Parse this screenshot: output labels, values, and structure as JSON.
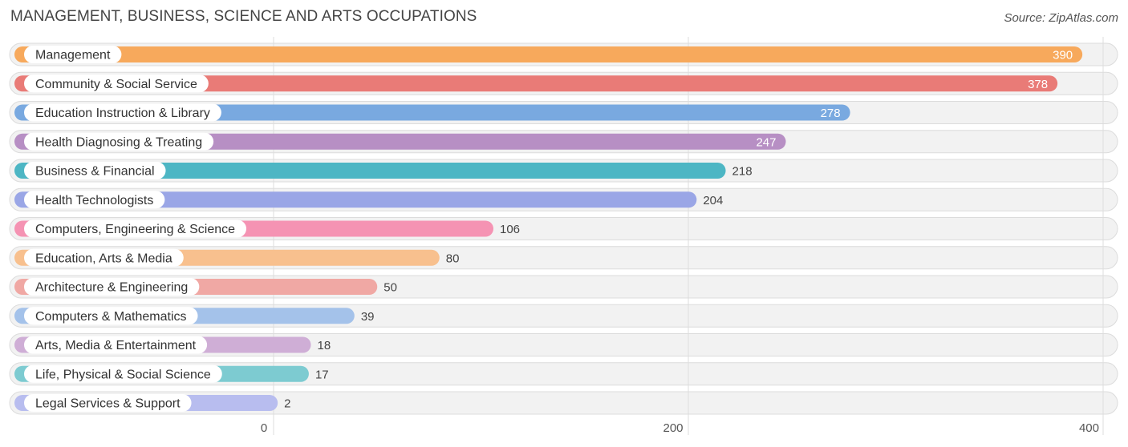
{
  "header": {
    "title": "MANAGEMENT, BUSINESS, SCIENCE AND ARTS OCCUPATIONS",
    "source": "Source: ZipAtlas.com"
  },
  "chart_data": {
    "type": "bar",
    "orientation": "horizontal",
    "title": "MANAGEMENT, BUSINESS, SCIENCE AND ARTS OCCUPATIONS",
    "xlim": [
      0,
      400
    ],
    "xticks": [
      0,
      200,
      400
    ],
    "grid": true,
    "categories": [
      "Management",
      "Community & Social Service",
      "Education Instruction & Library",
      "Health Diagnosing & Treating",
      "Business & Financial",
      "Health Technologists",
      "Computers, Engineering & Science",
      "Education, Arts & Media",
      "Architecture & Engineering",
      "Computers & Mathematics",
      "Arts, Media & Entertainment",
      "Life, Physical & Social Science",
      "Legal Services & Support"
    ],
    "values": [
      390,
      378,
      278,
      247,
      218,
      204,
      106,
      80,
      50,
      39,
      18,
      17,
      2
    ],
    "colors": [
      "#f7a95c",
      "#e97b77",
      "#79a9e0",
      "#b78fc4",
      "#4db6c4",
      "#9aa6e6",
      "#f593b3",
      "#f8c08e",
      "#f0a8a4",
      "#a4c2ea",
      "#cfaed6",
      "#7dcbd1",
      "#b8bdef"
    ]
  }
}
